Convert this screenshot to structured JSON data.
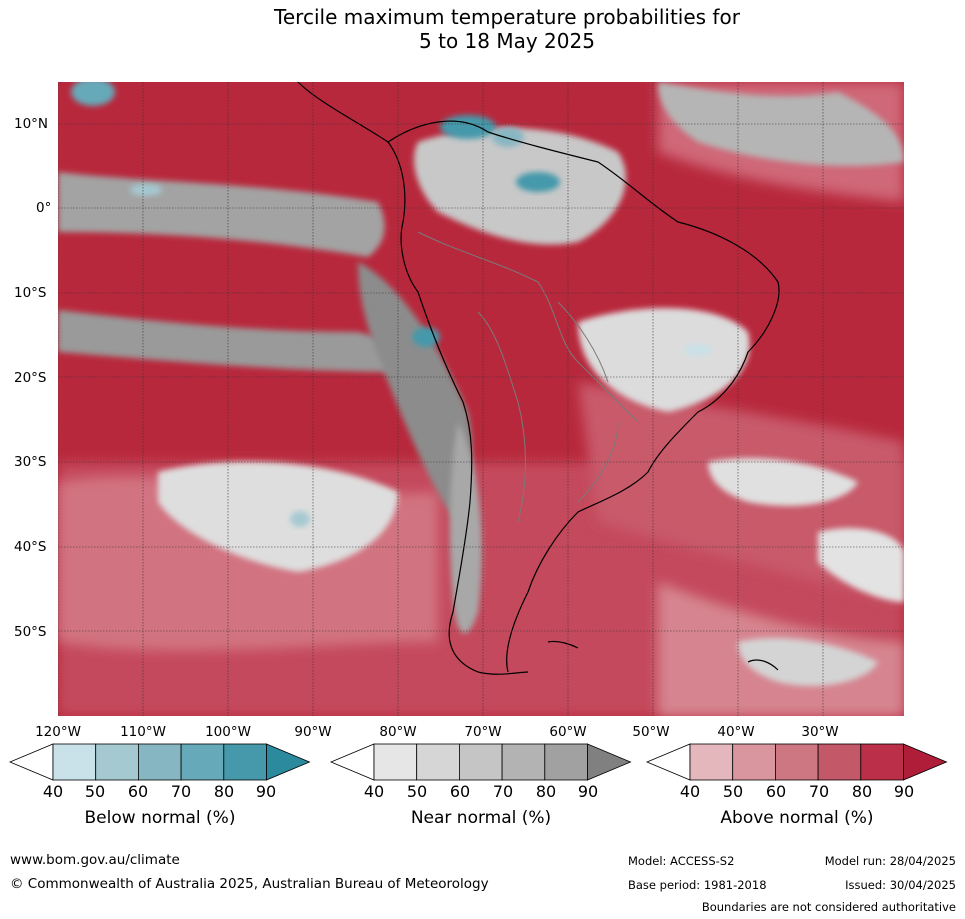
{
  "title": {
    "line1": "Tercile maximum temperature probabilities for",
    "line2": "5 to 18 May 2025"
  },
  "map": {
    "lat_labels": [
      "10°N",
      "0°",
      "10°S",
      "20°S",
      "30°S",
      "40°S",
      "50°S"
    ],
    "lon_labels": [
      "120°W",
      "110°W",
      "100°W",
      "90°W",
      "80°W",
      "70°W",
      "60°W",
      "50°W",
      "40°W",
      "30°W"
    ],
    "ocean_base_color": "#b8283c",
    "gridline_color": "#333333"
  },
  "colorbars": [
    {
      "label": "Below normal (%)",
      "ticks": [
        "40",
        "50",
        "60",
        "70",
        "80",
        "90"
      ],
      "colors": [
        "#ffffff",
        "#c9e1e8",
        "#a5c9d1",
        "#87b6c3",
        "#66a9b9",
        "#4599ab",
        "#2b8a9e"
      ]
    },
    {
      "label": "Near normal (%)",
      "ticks": [
        "40",
        "50",
        "60",
        "70",
        "80",
        "90"
      ],
      "colors": [
        "#ffffff",
        "#e6e6e6",
        "#d6d6d6",
        "#c5c5c5",
        "#b3b3b3",
        "#a1a1a1",
        "#808080"
      ]
    },
    {
      "label": "Above normal (%)",
      "ticks": [
        "40",
        "50",
        "60",
        "70",
        "80",
        "90"
      ],
      "colors": [
        "#ffffff",
        "#e4b7bc",
        "#d9969e",
        "#cc7781",
        "#c35868",
        "#bb3048",
        "#b01d38"
      ]
    }
  ],
  "footer": {
    "url": "www.bom.gov.au/climate",
    "copyright": "© Commonwealth of Australia 2025, Australian Bureau of Meteorology",
    "model": "Model: ACCESS-S2",
    "base_period": "Base period: 1981-2018",
    "model_run": "Model run: 28/04/2025",
    "issued": "Issued: 30/04/2025",
    "disclaimer": "Boundaries are not considered authoritative"
  }
}
